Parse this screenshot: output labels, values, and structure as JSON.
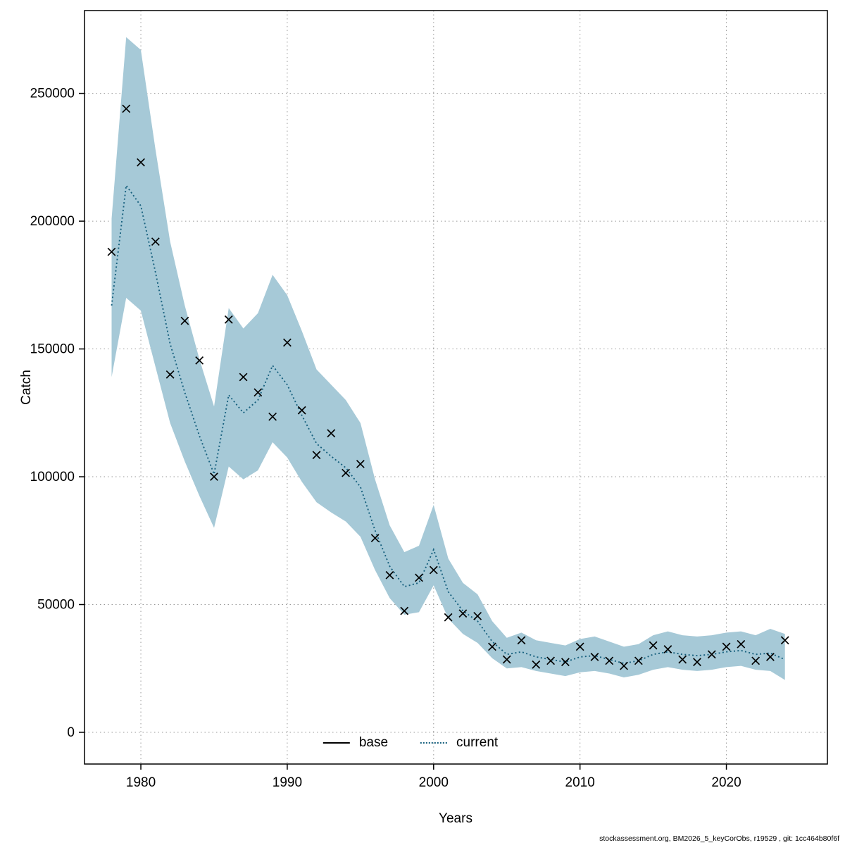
{
  "chart_data": {
    "type": "line",
    "title": "",
    "xlabel": "Years",
    "ylabel": "Catch",
    "footer": "stockassessment.org, BM2026_5_keyCorObs, r19529 , git: 1cc464b80f6f",
    "grid": true,
    "legend_position": "bottom-center-inside",
    "x_ticks": [
      1980,
      1990,
      2000,
      2010,
      2020
    ],
    "y_ticks": [
      0,
      50000,
      100000,
      150000,
      200000,
      250000
    ],
    "xlim": [
      1976.15,
      2026.9
    ],
    "ylim": [
      -12400,
      282400
    ],
    "colors": {
      "band": "#a6c9d7",
      "current_line": "#17607e",
      "observations": "#000000",
      "grid": "#999999",
      "frame": "#000000"
    },
    "legend": {
      "items": [
        {
          "label": "base",
          "style": "solid",
          "color": "#000000"
        },
        {
          "label": "current",
          "style": "dotted",
          "color": "#17607e"
        }
      ]
    },
    "x": [
      1978,
      1979,
      1980,
      1981,
      1982,
      1983,
      1984,
      1985,
      1986,
      1987,
      1988,
      1989,
      1990,
      1991,
      1992,
      1993,
      1994,
      1995,
      1996,
      1997,
      1998,
      1999,
      2000,
      2001,
      2002,
      2003,
      2004,
      2005,
      2006,
      2007,
      2008,
      2009,
      2010,
      2011,
      2012,
      2013,
      2014,
      2015,
      2016,
      2017,
      2018,
      2019,
      2020,
      2021,
      2022,
      2023,
      2024
    ],
    "observations": {
      "name": "catch observations",
      "marker": "x",
      "values": [
        188000,
        244000,
        223000,
        192000,
        140000,
        161000,
        145500,
        100000,
        161500,
        139000,
        133000,
        123500,
        152500,
        126000,
        108500,
        117000,
        101500,
        105000,
        76000,
        61500,
        47500,
        60500,
        63500,
        45000,
        46500,
        45500,
        33500,
        28500,
        36000,
        26500,
        28000,
        27500,
        33500,
        29500,
        28000,
        26000,
        28000,
        34000,
        32500,
        28500,
        27500,
        30500,
        33500,
        34500,
        28000,
        29500,
        36000
      ]
    },
    "current_line": {
      "name": "current",
      "style": "dotted",
      "values": [
        167000,
        214000,
        206000,
        180000,
        152000,
        133000,
        116000,
        101000,
        132000,
        125000,
        130000,
        143500,
        136000,
        124000,
        113000,
        108000,
        103500,
        96000,
        79000,
        65000,
        57000,
        58500,
        71500,
        55000,
        47500,
        43500,
        35500,
        30500,
        31500,
        29500,
        28500,
        27500,
        29500,
        30000,
        28500,
        27000,
        28000,
        30500,
        31500,
        30500,
        30000,
        30500,
        31500,
        32000,
        30500,
        31000,
        28500
      ]
    },
    "band": {
      "name": "current confidence band",
      "lower": [
        139000,
        170000,
        165000,
        143000,
        121000,
        106000,
        92500,
        80000,
        104000,
        99000,
        102500,
        113500,
        107500,
        98000,
        90000,
        86000,
        82500,
        76500,
        63500,
        52500,
        46000,
        47000,
        57500,
        44500,
        38500,
        35000,
        29000,
        25000,
        25500,
        24000,
        23000,
        22000,
        23500,
        24000,
        23000,
        21500,
        22500,
        24500,
        25500,
        24500,
        24000,
        24500,
        25500,
        26000,
        24500,
        24000,
        20500
      ],
      "upper": [
        201000,
        272000,
        267000,
        228000,
        192000,
        167000,
        146000,
        127500,
        166000,
        158000,
        164000,
        179000,
        171000,
        157000,
        142000,
        136000,
        130000,
        121000,
        99000,
        81000,
        70500,
        73000,
        89000,
        68000,
        58500,
        54000,
        43500,
        37000,
        39000,
        36000,
        35000,
        34000,
        36500,
        37500,
        35500,
        33500,
        34500,
        38000,
        39500,
        38000,
        37500,
        38000,
        39000,
        39500,
        38000,
        40500,
        38500
      ]
    }
  }
}
